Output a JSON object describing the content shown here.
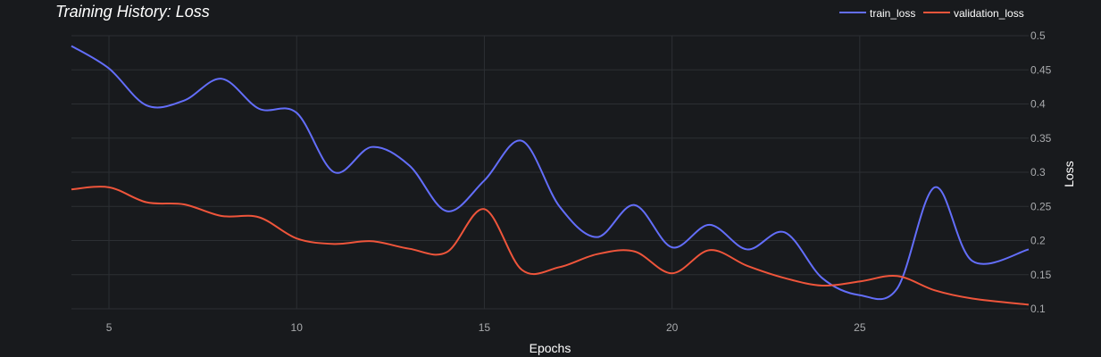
{
  "chart_data": {
    "type": "line",
    "title": "Training History: Loss",
    "xlabel": "Epochs",
    "ylabel": "Loss",
    "xlim": [
      4,
      29.5
    ],
    "ylim": [
      0.1,
      0.5
    ],
    "x_ticks": [
      5,
      10,
      15,
      20,
      25
    ],
    "y_ticks": [
      0.1,
      0.15,
      0.2,
      0.25,
      0.3,
      0.35,
      0.4,
      0.45,
      0.5
    ],
    "y_tick_labels": [
      "0.1",
      "0.15",
      "0.2",
      "0.25",
      "0.3",
      "0.35",
      "0.4",
      "0.45",
      "0.5"
    ],
    "grid": true,
    "legend_position": "top-right",
    "x": [
      4,
      5,
      6,
      7,
      8,
      9,
      10,
      11,
      12,
      13,
      14,
      15,
      16,
      17,
      18,
      19,
      20,
      21,
      22,
      23,
      24,
      25,
      26,
      27,
      28,
      29.5
    ],
    "series": [
      {
        "name": "train_loss",
        "color": "#636efa",
        "values": [
          0.485,
          0.452,
          0.398,
          0.405,
          0.437,
          0.393,
          0.387,
          0.3,
          0.337,
          0.31,
          0.243,
          0.288,
          0.346,
          0.25,
          0.205,
          0.252,
          0.19,
          0.223,
          0.187,
          0.212,
          0.145,
          0.12,
          0.13,
          0.278,
          0.17,
          0.187
        ]
      },
      {
        "name": "validation_loss",
        "color": "#ef553b",
        "values": [
          0.275,
          0.278,
          0.256,
          0.253,
          0.236,
          0.234,
          0.203,
          0.195,
          0.199,
          0.188,
          0.183,
          0.246,
          0.157,
          0.161,
          0.18,
          0.184,
          0.152,
          0.186,
          0.163,
          0.145,
          0.134,
          0.14,
          0.148,
          0.127,
          0.115,
          0.106
        ]
      }
    ]
  }
}
